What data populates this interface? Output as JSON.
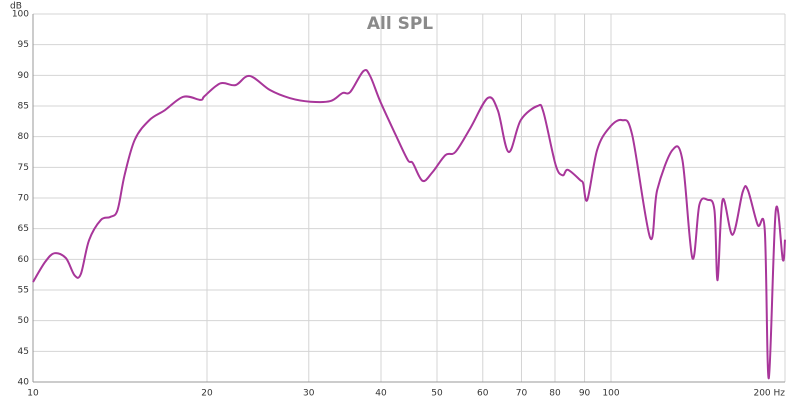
{
  "chart_data": {
    "type": "line",
    "title": "All SPL",
    "y_label": "dB",
    "log_x": true,
    "grid": true,
    "color": "#a8369a",
    "xlim": [
      10,
      200
    ],
    "xticks": [
      10,
      20,
      30,
      40,
      50,
      60,
      70,
      80,
      90,
      100,
      {
        "value": 200,
        "label": "200 Hz"
      }
    ],
    "ylim": [
      40,
      100
    ],
    "yticks": [
      40,
      45,
      50,
      55,
      60,
      65,
      70,
      75,
      80,
      85,
      90,
      95,
      100
    ],
    "x": [
      10,
      10.5,
      10.9,
      11.4,
      11.8,
      12.1,
      12.5,
      13.1,
      13.6,
      14.0,
      14.4,
      15.0,
      15.9,
      16.9,
      18.2,
      19.5,
      19.8,
      21.1,
      22.4,
      23.7,
      25.7,
      27.8,
      30.2,
      32.7,
      34.3,
      35.4,
      37.3,
      38.3,
      39.9,
      42.4,
      44.5,
      45.4,
      47.2,
      49.1,
      51.7,
      53.8,
      57.1,
      61.2,
      63.7,
      66.5,
      69.8,
      74.6,
      76.4,
      80.2,
      82.5,
      84.2,
      88.5,
      89.5,
      91.0,
      94.6,
      99.2,
      104.5,
      108.8,
      116.9,
      120.2,
      127.7,
      132.9,
      138.3,
      142.2,
      146.9,
      151.0,
      152.9,
      156.0,
      162.3,
      169.0,
      172.5,
      179.4,
      184.5,
      187.5,
      192.8,
      198.3,
      200
    ],
    "values": [
      56.3,
      59.6,
      61.0,
      60.2,
      57.4,
      57.6,
      63.1,
      66.4,
      66.9,
      68.0,
      73.7,
      79.5,
      82.7,
      84.3,
      86.5,
      86.0,
      86.6,
      88.7,
      88.4,
      89.9,
      87.6,
      86.3,
      85.7,
      85.8,
      87.1,
      87.3,
      90.7,
      89.9,
      85.7,
      80.3,
      76.2,
      75.7,
      72.8,
      74.2,
      77.0,
      77.5,
      81.4,
      86.3,
      84.3,
      77.5,
      82.7,
      85.0,
      84.0,
      75.4,
      73.7,
      74.6,
      72.9,
      72.4,
      69.7,
      77.8,
      81.4,
      82.7,
      80.3,
      63.5,
      71.3,
      77.8,
      76.2,
      60.2,
      68.9,
      69.7,
      68.0,
      56.6,
      69.7,
      64.0,
      71.0,
      71.3,
      65.6,
      64.8,
      40.6,
      68.0,
      59.9,
      63.2
    ]
  }
}
